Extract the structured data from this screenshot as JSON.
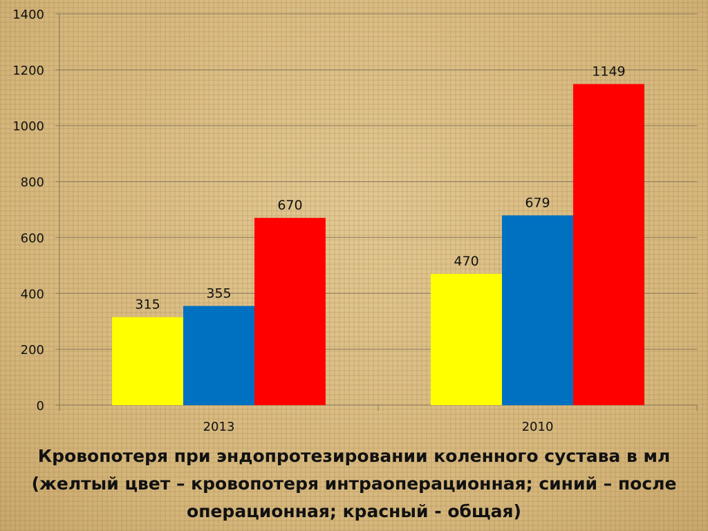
{
  "chart_data": {
    "type": "bar",
    "categories": [
      "2013",
      "2010"
    ],
    "series": [
      {
        "color": "#ffff00",
        "values": [
          315,
          470
        ]
      },
      {
        "color": "#0070c0",
        "values": [
          355,
          679
        ]
      },
      {
        "color": "#ff0000",
        "values": [
          670,
          1149
        ]
      }
    ],
    "ylim": [
      0,
      1400
    ],
    "yticks": [
      0,
      200,
      400,
      600,
      800,
      1000,
      1200,
      1400
    ],
    "grid": true,
    "legend": "none"
  },
  "caption": {
    "line1": "Кровопотеря при эндопротезировании коленного сустава в мл",
    "line2": "(желтый цвет – кровопотеря интраоперационная; синий – после",
    "line3": "операционная; красный - общая)"
  }
}
